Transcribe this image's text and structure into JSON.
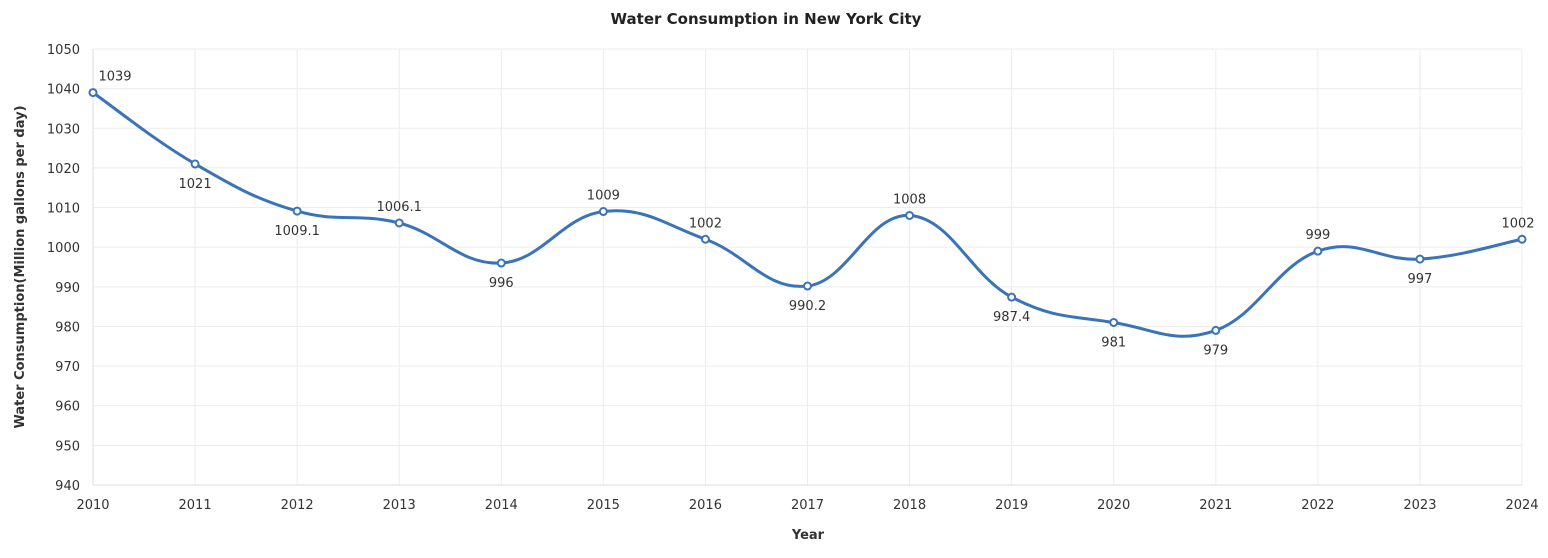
{
  "chart_data": {
    "type": "line",
    "title": "Water Consumption in New York City",
    "xlabel": "Year",
    "ylabel": "Water Consumption(Million gallons per day)",
    "categories": [
      "2010",
      "2011",
      "2012",
      "2013",
      "2014",
      "2015",
      "2016",
      "2017",
      "2018",
      "2019",
      "2020",
      "2021",
      "2022",
      "2023",
      "2024"
    ],
    "series": [
      {
        "values": [
          1039,
          1021,
          1009.1,
          1006.1,
          996,
          1009,
          1002,
          990.2,
          1008,
          987.4,
          981,
          979,
          999,
          997,
          1002
        ]
      }
    ],
    "ylim": [
      940,
      1050
    ],
    "yticks": [
      940,
      950,
      960,
      970,
      980,
      990,
      1000,
      1010,
      1020,
      1030,
      1040,
      1050
    ],
    "smooth": true,
    "grid": true,
    "colors": {
      "line": "#3a73b8",
      "grid": "#ececec"
    }
  }
}
